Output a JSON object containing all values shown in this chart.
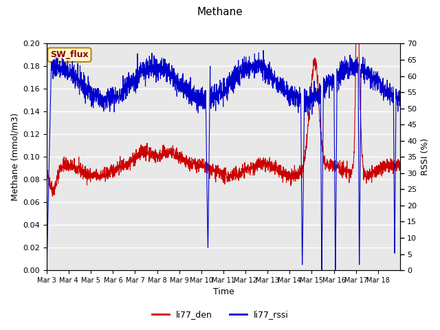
{
  "title": "Methane",
  "xlabel": "Time",
  "ylabel_left": "Methane (mmol/m3)",
  "ylabel_right": "RSSI (%)",
  "annotation": "SW_flux",
  "annotation_color": "#8B0000",
  "annotation_bg": "#FFFACD",
  "annotation_border": "#B8860B",
  "left_ylim": [
    0.0,
    0.2
  ],
  "right_ylim": [
    0,
    70
  ],
  "left_yticks": [
    0.0,
    0.02,
    0.04,
    0.06,
    0.08,
    0.1,
    0.12,
    0.14,
    0.16,
    0.18,
    0.2
  ],
  "right_yticks": [
    0,
    5,
    10,
    15,
    20,
    25,
    30,
    35,
    40,
    45,
    50,
    55,
    60,
    65,
    70
  ],
  "xtick_labels": [
    "Mar 3",
    "Mar 4",
    "Mar 5",
    "Mar 6",
    "Mar 7",
    "Mar 8",
    "Mar 9",
    "Mar 10",
    "Mar 11",
    "Mar 12",
    "Mar 13",
    "Mar 14",
    "Mar 15",
    "Mar 16",
    "Mar 17",
    "Mar 18"
  ],
  "line1_color": "#CC0000",
  "line2_color": "#0000CC",
  "legend_labels": [
    "li77_den",
    "li77_rssi"
  ],
  "bg_color": "#E8E8E8",
  "grid_color": "#FFFFFF",
  "fig_bg": "#FFFFFF"
}
